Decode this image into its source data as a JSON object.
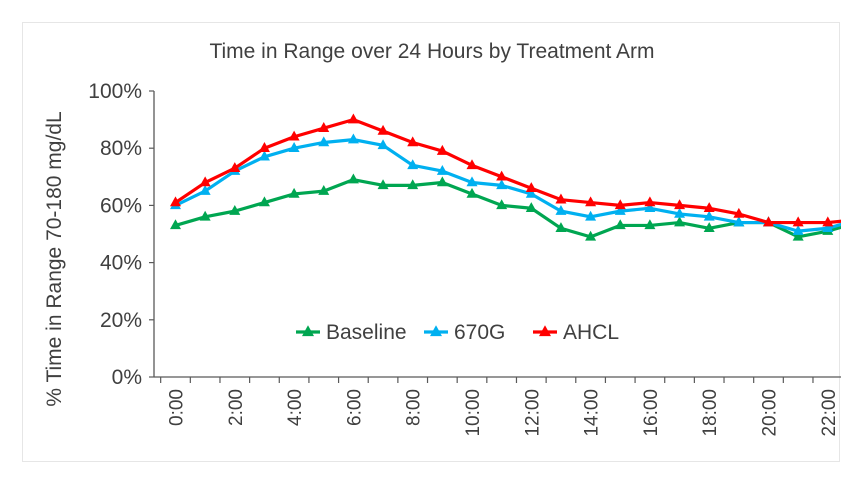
{
  "chart_data": {
    "type": "line",
    "title": "Time in Range over 24 Hours by Treatment Arm",
    "xlabel": "",
    "ylabel": "% Time in Range 70-180 mg/dL",
    "x": [
      "0:00",
      "1:00",
      "2:00",
      "3:00",
      "4:00",
      "5:00",
      "6:00",
      "7:00",
      "8:00",
      "9:00",
      "10:00",
      "11:00",
      "12:00",
      "13:00",
      "14:00",
      "15:00",
      "16:00",
      "17:00",
      "18:00",
      "19:00",
      "20:00",
      "21:00",
      "22:00",
      "23:00"
    ],
    "x_tick_labels": [
      "0:00",
      "2:00",
      "4:00",
      "6:00",
      "8:00",
      "10:00",
      "12:00",
      "14:00",
      "16:00",
      "18:00",
      "20:00",
      "22:00"
    ],
    "y_tick_labels": [
      "0%",
      "20%",
      "40%",
      "60%",
      "80%",
      "100%"
    ],
    "ylim": [
      0,
      100
    ],
    "grid": false,
    "legend_position": "bottom-center-inside",
    "series": [
      {
        "name": "Baseline",
        "color": "#00A651",
        "marker": "triangle",
        "values": [
          53,
          56,
          58,
          61,
          64,
          65,
          69,
          67,
          67,
          68,
          64,
          60,
          59,
          52,
          49,
          53,
          53,
          54,
          52,
          54,
          54,
          49,
          51,
          54
        ]
      },
      {
        "name": "670G",
        "color": "#00B0F0",
        "marker": "triangle",
        "values": [
          60,
          65,
          72,
          77,
          80,
          82,
          83,
          81,
          74,
          72,
          68,
          67,
          64,
          58,
          56,
          58,
          59,
          57,
          56,
          54,
          54,
          51,
          52,
          55
        ]
      },
      {
        "name": "AHCL",
        "color": "#FF0000",
        "marker": "triangle",
        "values": [
          61,
          68,
          73,
          80,
          84,
          87,
          90,
          86,
          82,
          79,
          74,
          70,
          66,
          62,
          61,
          60,
          61,
          60,
          59,
          57,
          54,
          54,
          54,
          55
        ]
      }
    ]
  }
}
